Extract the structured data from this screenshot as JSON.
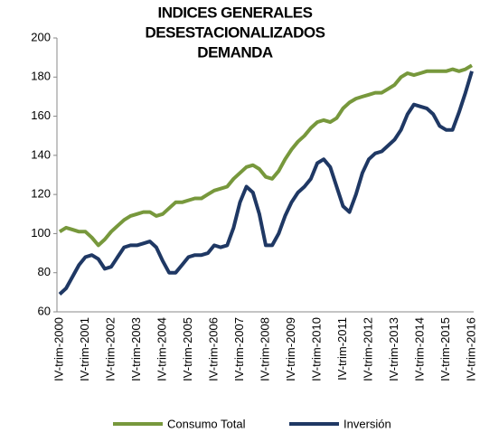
{
  "chart_data": {
    "type": "line",
    "title": [
      "INDICES GENERALES",
      "DESESTACIONALIZADOS",
      "DEMANDA"
    ],
    "categories": [
      "IV-trim-2000",
      null,
      null,
      null,
      "IV-trim-2001",
      null,
      null,
      null,
      "IV-trim-2002",
      null,
      null,
      null,
      "IV-trim-2003",
      null,
      null,
      null,
      "IV-trim-2004",
      null,
      null,
      null,
      "IV-trim-2005",
      null,
      null,
      null,
      "IV-trim-2006",
      null,
      null,
      null,
      "IV-trim-2007",
      null,
      null,
      null,
      "IV-trim-2008",
      null,
      null,
      null,
      "IV-trim-2009",
      null,
      null,
      null,
      "IV-trim-2010",
      null,
      null,
      null,
      "IV-trim-2011",
      null,
      null,
      null,
      "IV-trim-2012",
      null,
      null,
      null,
      "IV-trim-2013",
      null,
      null,
      null,
      "IV-trim-2014",
      null,
      null,
      null,
      "IV-trim-2015",
      null,
      null,
      null,
      "IV-trim-2016"
    ],
    "series": [
      {
        "name": "Consumo Total",
        "color": "#77983c",
        "values": [
          101,
          103,
          102,
          101,
          101,
          98,
          94,
          97,
          101,
          104,
          107,
          109,
          110,
          111,
          111,
          109,
          110,
          113,
          116,
          116,
          117,
          118,
          118,
          120,
          122,
          123,
          124,
          128,
          131,
          134,
          135,
          133,
          129,
          128,
          132,
          138,
          143,
          147,
          150,
          154,
          157,
          158,
          157,
          159,
          164,
          167,
          169,
          170,
          171,
          172,
          172,
          174,
          176,
          180,
          182,
          181,
          182,
          183,
          183,
          183,
          183,
          184,
          183,
          184,
          186
        ]
      },
      {
        "name": "Inversión",
        "color": "#1f3864",
        "values": [
          69,
          72,
          78,
          84,
          88,
          89,
          87,
          82,
          83,
          88,
          93,
          94,
          94,
          95,
          96,
          93,
          86,
          80,
          80,
          84,
          88,
          89,
          89,
          90,
          94,
          93,
          94,
          103,
          116,
          124,
          121,
          110,
          94,
          94,
          100,
          109,
          116,
          121,
          124,
          128,
          136,
          138,
          134,
          124,
          114,
          111,
          120,
          131,
          138,
          141,
          142,
          145,
          148,
          153,
          161,
          166,
          165,
          164,
          161,
          155,
          153,
          153,
          162,
          172,
          183
        ]
      }
    ],
    "ylim": [
      60,
      200
    ],
    "yticks": [
      60,
      80,
      100,
      120,
      140,
      160,
      180,
      200
    ]
  }
}
